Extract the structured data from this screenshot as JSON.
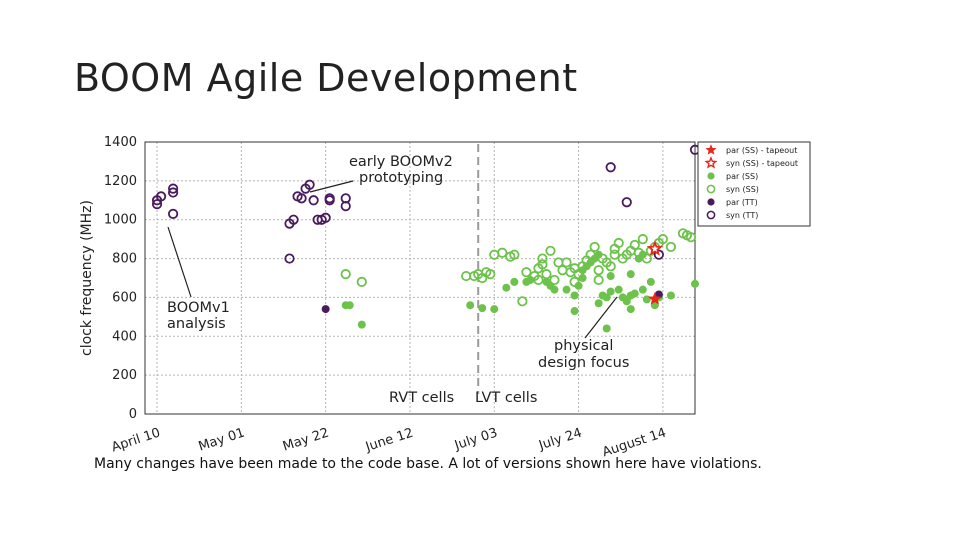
{
  "slide": {
    "title": "BOOM Agile Development",
    "caption": "Many changes have been made to the code base. A lot of versions shown here have violations."
  },
  "chart_data": {
    "type": "scatter",
    "title": "",
    "xlabel": "",
    "ylabel": "clock frequency (MHz)",
    "ylim": [
      0,
      1400
    ],
    "xlim": [
      -3,
      134
    ],
    "x_ticks": [
      {
        "label": "April 10",
        "value": 0
      },
      {
        "label": "May 01",
        "value": 21
      },
      {
        "label": "May 22",
        "value": 42
      },
      {
        "label": "June 12",
        "value": 63
      },
      {
        "label": "July 03",
        "value": 84
      },
      {
        "label": "July 24",
        "value": 105
      },
      {
        "label": "August 14",
        "value": 126
      }
    ],
    "y_ticks": [
      0,
      200,
      400,
      600,
      800,
      1000,
      1200,
      1400
    ],
    "grid": true,
    "legend_position": "top-right",
    "colors": {
      "purple": "#4a1a5e",
      "green": "#6cc24a",
      "red": "#e8261a"
    },
    "vline": {
      "x": 80,
      "style": "dashed"
    },
    "annotations": [
      {
        "text": "early BOOMv2",
        "line": 0
      },
      {
        "text": "prototyping",
        "line": 1
      },
      {
        "text": "BOOMv1",
        "line": 0
      },
      {
        "text": "analysis",
        "line": 1
      },
      {
        "text": "physical",
        "line": 0
      },
      {
        "text": "design focus",
        "line": 1
      },
      {
        "text": "RVT cells",
        "line": 0
      },
      {
        "text": "LVT cells",
        "line": 0
      }
    ],
    "series": [
      {
        "name": "par (SS) - tapeout",
        "marker": "star",
        "filled": true,
        "color": "#e8261a",
        "x": [
          124
        ],
        "y": [
          592
        ]
      },
      {
        "name": "syn (SS) - tapeout",
        "marker": "star",
        "filled": false,
        "color": "#e8261a",
        "x": [
          124
        ],
        "y": [
          850
        ]
      },
      {
        "name": "par (SS)",
        "marker": "circle",
        "filled": true,
        "color": "#6cc24a",
        "x": [
          47,
          48,
          51,
          78,
          81,
          84,
          87,
          89,
          92,
          93,
          97,
          98,
          99,
          102,
          104,
          104,
          105,
          106,
          106,
          107,
          108,
          109,
          110,
          110,
          111,
          112,
          112,
          113,
          113,
          115,
          116,
          117,
          117,
          118,
          118,
          118,
          119,
          120,
          121,
          121,
          122,
          123,
          124,
          125,
          128,
          135
        ],
        "y": [
          560,
          560,
          460,
          560,
          545,
          540,
          650,
          680,
          680,
          690,
          680,
          660,
          640,
          640,
          530,
          610,
          660,
          700,
          740,
          760,
          780,
          800,
          820,
          570,
          610,
          600,
          440,
          630,
          710,
          640,
          600,
          580,
          590,
          540,
          610,
          720,
          620,
          800,
          640,
          820,
          590,
          680,
          560,
          600,
          610,
          670
        ]
      },
      {
        "name": "syn (SS)",
        "marker": "circle",
        "filled": false,
        "color": "#6cc24a",
        "x": [
          47,
          51,
          77,
          79,
          80,
          81,
          82,
          83,
          84,
          86,
          88,
          89,
          91,
          92,
          94,
          95,
          95,
          96,
          96,
          97,
          98,
          99,
          100,
          101,
          102,
          103,
          104,
          104,
          105,
          106,
          107,
          108,
          109,
          110,
          110,
          111,
          112,
          113,
          114,
          114,
          115,
          116,
          117,
          118,
          119,
          120,
          121,
          122,
          123,
          124,
          125,
          126,
          128,
          131,
          132,
          133
        ],
        "y": [
          720,
          680,
          710,
          710,
          720,
          700,
          730,
          720,
          820,
          830,
          810,
          820,
          580,
          730,
          710,
          690,
          750,
          770,
          800,
          720,
          840,
          690,
          780,
          740,
          780,
          730,
          680,
          750,
          720,
          760,
          790,
          820,
          860,
          690,
          740,
          800,
          780,
          760,
          820,
          850,
          880,
          800,
          820,
          840,
          870,
          830,
          900,
          800,
          840,
          860,
          880,
          900,
          860,
          930,
          920,
          910
        ]
      },
      {
        "name": "par (TT)",
        "marker": "circle",
        "filled": true,
        "color": "#4a1a5e",
        "x": [
          42,
          125
        ],
        "y": [
          540,
          615
        ]
      },
      {
        "name": "syn (TT)",
        "marker": "circle",
        "filled": false,
        "color": "#4a1a5e",
        "x": [
          0,
          0,
          1,
          4,
          4,
          4,
          33,
          33,
          34,
          35,
          36,
          37,
          38,
          39,
          40,
          41,
          42,
          43,
          43,
          47,
          47,
          113,
          117,
          125,
          140
        ],
        "y": [
          1080,
          1100,
          1120,
          1030,
          1140,
          1160,
          800,
          980,
          1000,
          1120,
          1110,
          1160,
          1180,
          1100,
          1000,
          1000,
          1010,
          1110,
          1100,
          1070,
          1110,
          1270,
          1090,
          820,
          1360
        ]
      }
    ]
  }
}
